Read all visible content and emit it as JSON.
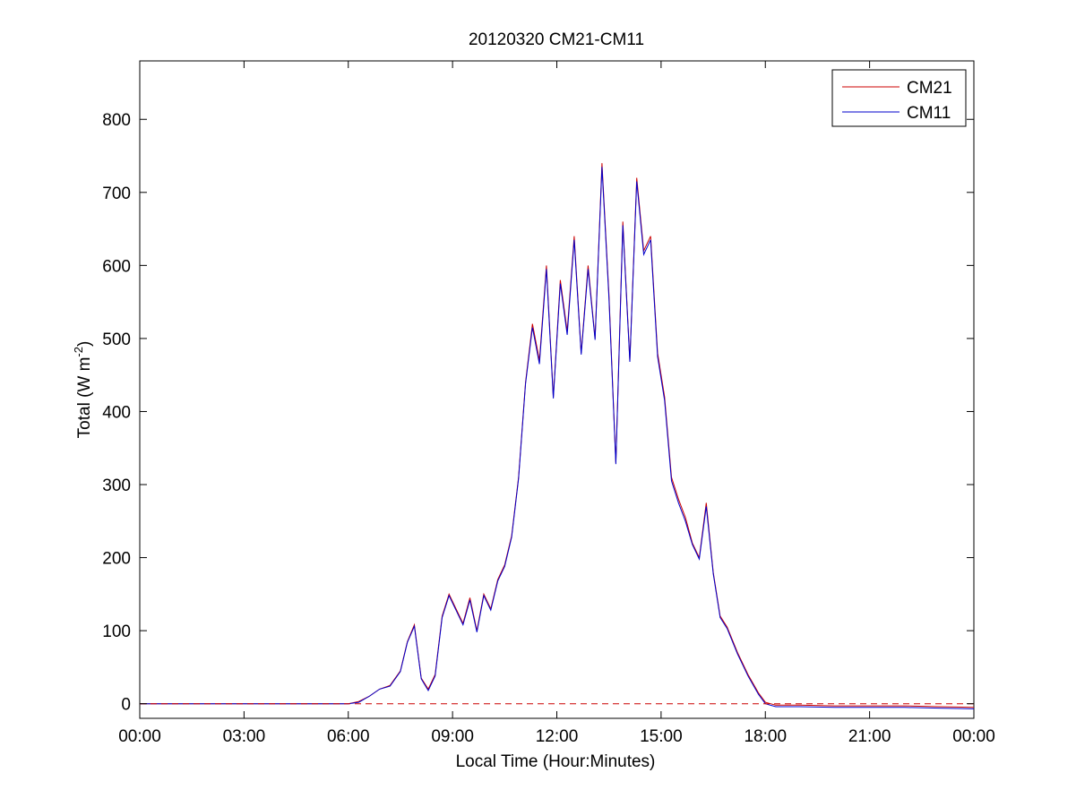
{
  "chart_data": {
    "type": "line",
    "title": "20120320 CM21-CM11",
    "xlabel": "Local Time (Hour:Minutes)",
    "ylabel_main": "Total (W m",
    "ylabel_sup": "-2",
    "ylabel_close": ")",
    "xlim": [
      0,
      24
    ],
    "ylim": [
      -20,
      880
    ],
    "x_ticks": [
      0,
      3,
      6,
      9,
      12,
      15,
      18,
      21,
      24
    ],
    "x_tick_labels": [
      "00:00",
      "03:00",
      "06:00",
      "09:00",
      "12:00",
      "15:00",
      "18:00",
      "21:00",
      "00:00"
    ],
    "y_ticks": [
      0,
      100,
      200,
      300,
      400,
      500,
      600,
      700,
      800
    ],
    "y_tick_labels": [
      "0",
      "100",
      "200",
      "300",
      "400",
      "500",
      "600",
      "700",
      "800"
    ],
    "grid": false,
    "legend_position": "top-right",
    "zero_line": {
      "y": 0,
      "style": "dashed",
      "color": "#cc0000"
    },
    "x_units": "hours",
    "series": [
      {
        "name": "CM21",
        "color": "#cc0000",
        "x": [
          0,
          3,
          6,
          6.3,
          6.6,
          6.9,
          7.2,
          7.5,
          7.7,
          7.9,
          8.1,
          8.3,
          8.5,
          8.7,
          8.9,
          9.1,
          9.3,
          9.5,
          9.7,
          9.9,
          10.1,
          10.3,
          10.5,
          10.7,
          10.9,
          11.1,
          11.3,
          11.5,
          11.7,
          11.9,
          12.1,
          12.3,
          12.5,
          12.7,
          12.9,
          13.1,
          13.3,
          13.5,
          13.7,
          13.9,
          14.1,
          14.3,
          14.5,
          14.7,
          14.9,
          15.1,
          15.3,
          15.5,
          15.7,
          15.9,
          16.1,
          16.3,
          16.5,
          16.7,
          16.9,
          17.2,
          17.5,
          17.8,
          18.0,
          18.3,
          19,
          20,
          21,
          22,
          23,
          24
        ],
        "y": [
          0,
          0,
          0,
          3,
          10,
          20,
          25,
          45,
          85,
          108,
          35,
          20,
          40,
          120,
          150,
          130,
          110,
          145,
          100,
          150,
          130,
          170,
          190,
          230,
          310,
          440,
          520,
          470,
          600,
          420,
          580,
          510,
          640,
          480,
          600,
          500,
          740,
          560,
          330,
          660,
          470,
          720,
          620,
          640,
          480,
          420,
          310,
          280,
          255,
          220,
          200,
          275,
          180,
          120,
          105,
          70,
          40,
          15,
          2,
          -2,
          -2,
          -3,
          -3,
          -3,
          -4,
          -5
        ]
      },
      {
        "name": "CM11",
        "color": "#0000cc",
        "x": [
          0,
          3,
          6,
          6.3,
          6.6,
          6.9,
          7.2,
          7.5,
          7.7,
          7.9,
          8.1,
          8.3,
          8.5,
          8.7,
          8.9,
          9.1,
          9.3,
          9.5,
          9.7,
          9.9,
          10.1,
          10.3,
          10.5,
          10.7,
          10.9,
          11.1,
          11.3,
          11.5,
          11.7,
          11.9,
          12.1,
          12.3,
          12.5,
          12.7,
          12.9,
          13.1,
          13.3,
          13.5,
          13.7,
          13.9,
          14.1,
          14.3,
          14.5,
          14.7,
          14.9,
          15.1,
          15.3,
          15.5,
          15.7,
          15.9,
          16.1,
          16.3,
          16.5,
          16.7,
          16.9,
          17.2,
          17.5,
          17.8,
          18.0,
          18.3,
          19,
          20,
          21,
          22,
          23,
          24
        ],
        "y": [
          0,
          0,
          0,
          2,
          10,
          20,
          24,
          44,
          84,
          106,
          34,
          18,
          38,
          118,
          148,
          128,
          108,
          142,
          98,
          148,
          128,
          168,
          188,
          228,
          308,
          438,
          515,
          465,
          595,
          418,
          575,
          505,
          635,
          478,
          595,
          498,
          735,
          555,
          328,
          655,
          468,
          715,
          615,
          635,
          475,
          415,
          305,
          275,
          250,
          218,
          198,
          270,
          178,
          118,
          103,
          68,
          38,
          13,
          0,
          -4,
          -4,
          -5,
          -5,
          -5,
          -6,
          -7
        ]
      }
    ]
  }
}
